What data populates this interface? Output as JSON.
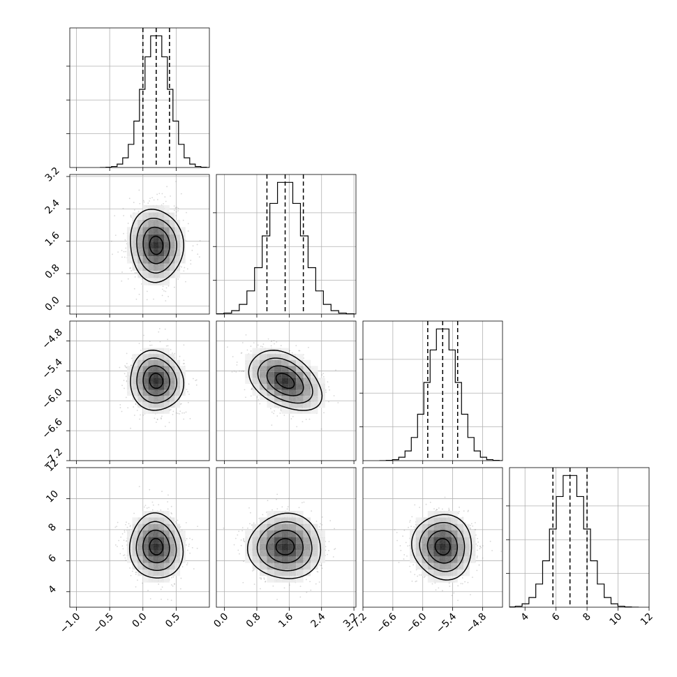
{
  "chart_data": {
    "type": "corner",
    "parameters": [
      {
        "mean": 0.2,
        "sd": 0.2,
        "q16": 0.0,
        "q50": 0.2,
        "q84": 0.4,
        "range": [
          -1.1,
          1.0
        ],
        "ticks": [
          -1.0,
          -0.5,
          0.0,
          0.5
        ],
        "tick_labels": [
          "−1.0",
          "−0.5",
          "0.0",
          "0.5"
        ]
      },
      {
        "mean": 1.5,
        "sd": 0.45,
        "q16": 1.05,
        "q50": 1.5,
        "q84": 1.95,
        "range": [
          -0.2,
          3.25
        ],
        "ticks": [
          0.0,
          0.8,
          1.6,
          2.4,
          3.2
        ],
        "tick_labels": [
          "0.0",
          "0.8",
          "1.6",
          "2.4",
          "3.2"
        ]
      },
      {
        "mean": -5.6,
        "sd": 0.3,
        "q16": -5.9,
        "q50": -5.6,
        "q84": -5.3,
        "range": [
          -7.2,
          -4.4
        ],
        "ticks": [
          -7.2,
          -6.6,
          -6.0,
          -5.4,
          -4.8
        ],
        "tick_labels": [
          "−7.2",
          "−6.6",
          "−6.0",
          "−5.4",
          "−4.8"
        ]
      },
      {
        "mean": 6.9,
        "sd": 1.05,
        "q16": 5.8,
        "q50": 6.9,
        "q84": 8.0,
        "range": [
          3.0,
          12.0
        ],
        "ticks": [
          4,
          6,
          8,
          10,
          12
        ],
        "tick_labels": [
          "4",
          "6",
          "8",
          "10",
          "12"
        ]
      }
    ],
    "correlations": [
      [
        1.0,
        -0.05,
        -0.05,
        -0.05
      ],
      [
        -0.05,
        1.0,
        -0.4,
        0.0
      ],
      [
        -0.05,
        -0.4,
        1.0,
        -0.05
      ],
      [
        -0.05,
        0.0,
        -0.05,
        1.0
      ]
    ],
    "histogram_bins": 20,
    "contour_levels_sigma": [
      0.5,
      1.0,
      1.5,
      2.0
    ],
    "grid": true
  }
}
